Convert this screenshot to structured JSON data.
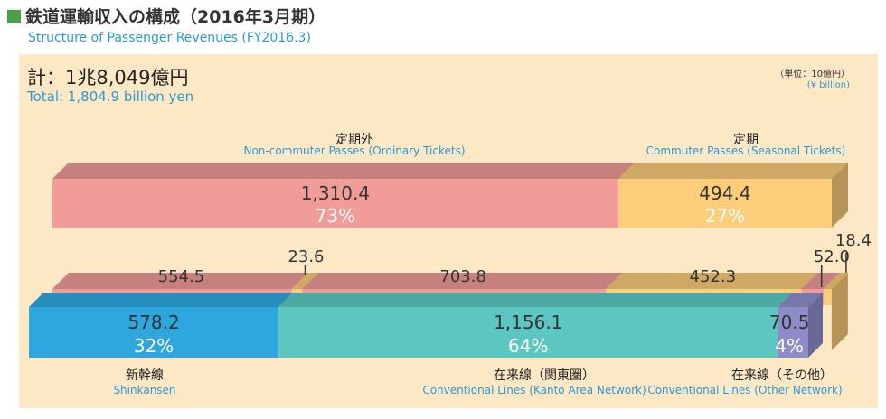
{
  "title": {
    "jp": "鉄道運輸収入の構成（2016年3月期）",
    "en": "Structure of Passenger Revenues  (FY2016.3)"
  },
  "total": {
    "jp": "計：1兆8,049億円",
    "en": "Total: 1,804.9 billion yen"
  },
  "unit": {
    "jp": "（単位：10億円）",
    "en": "(¥ billion)"
  },
  "labels": {
    "noncommuter_jp": "定期外",
    "noncommuter_en": "Non-commuter Passes (Ordinary Tickets)",
    "commuter_jp": "定期",
    "commuter_en": "Commuter Passes (Seasonal Tickets)",
    "shinkansen_jp": "新幹線",
    "shinkansen_en": "Shinkansen",
    "kanto_jp": "在来線（関東圏）",
    "kanto_en": "Conventional Lines (Kanto Area Network)",
    "other_jp": "在来線（その他）",
    "other_en": "Conventional Lines (Other Network)"
  },
  "colors": {
    "noncommuter": "#f29c9a",
    "commuter": "#fdce7a",
    "shinkansen": "#2da7de",
    "kanto": "#5cc7c0",
    "other": "#8d8cc8",
    "panel": "#fde8c6",
    "title_square": "#4aa047",
    "english_text": "#2a9ad6"
  },
  "chart_data": [
    {
      "type": "bar",
      "orientation": "horizontal-stacked",
      "categories": [
        "定期外",
        "定期"
      ],
      "values": [
        1310.4,
        494.4
      ],
      "value_labels": [
        "1,310.4",
        "494.4"
      ],
      "percent_labels": [
        "73%",
        "27%"
      ]
    },
    {
      "type": "bar",
      "orientation": "horizontal-stacked",
      "categories": [
        "新幹線",
        "在来線（関東圏）",
        "在来線（その他）"
      ],
      "values": [
        578.2,
        1156.1,
        70.5
      ],
      "value_labels": [
        "578.2",
        "1,156.1",
        "70.5"
      ],
      "percent_labels": [
        "32%",
        "64%",
        "4%"
      ],
      "breakdown": {
        "noncommuter": {
          "values": [
            554.5,
            703.8,
            52.0
          ],
          "value_labels": [
            "554.5",
            "703.8",
            "52.0"
          ]
        },
        "commuter": {
          "values": [
            23.6,
            452.3,
            18.4
          ],
          "value_labels": [
            "23.6",
            "452.3",
            "18.4"
          ]
        }
      }
    }
  ]
}
